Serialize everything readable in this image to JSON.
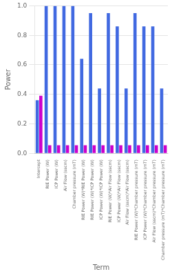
{
  "chart_data": {
    "type": "bar",
    "xlabel": "Term",
    "ylabel": "Power",
    "categories": [
      "Intercept",
      "RIE Power (W)",
      "ICP Power (W)",
      "Air Flow (sscm)",
      "Chamber pressure (mT)",
      "RIE Power (W)*RIE Power (W)",
      "RIE Power (W)*ICP Power (W)",
      "ICP Power (W)*ICP Power (W)",
      "RIE Power (W)*Air Flow (sscm)",
      "ICP Power (W)*Air Flow (sscm)",
      "Air Flow (sscm)*Air Flow (sscm)",
      "RIE Power (W)*Chamber pressure (mT)",
      "ICP Power (W)*Chamber pressure (mT)",
      "Air Flow (sscm)*Chamber pressure (mT)",
      "Chamber pressure (mT)*Chamber pressure (mT)"
    ],
    "series": [
      {
        "color": "#4169e1",
        "values": [
          0.36,
          1.0,
          1.0,
          1.0,
          1.0,
          0.64,
          0.95,
          0.44,
          0.95,
          0.86,
          0.44,
          0.95,
          0.86,
          0.86,
          0.44
        ]
      },
      {
        "color": "#cc00cc",
        "values": [
          0.39,
          0.055,
          0.055,
          0.055,
          0.055,
          0.055,
          0.055,
          0.055,
          0.055,
          0.055,
          0.055,
          0.055,
          0.055,
          0.055,
          0.055
        ]
      }
    ],
    "ylim": [
      0.0,
      1.0
    ],
    "yticks": [
      {
        "value": 0,
        "label": "0.0"
      },
      0.2,
      0.4,
      0.6,
      0.8,
      {
        "value": 1,
        "label": "1.0"
      }
    ],
    "grid": true,
    "legend": false
  }
}
